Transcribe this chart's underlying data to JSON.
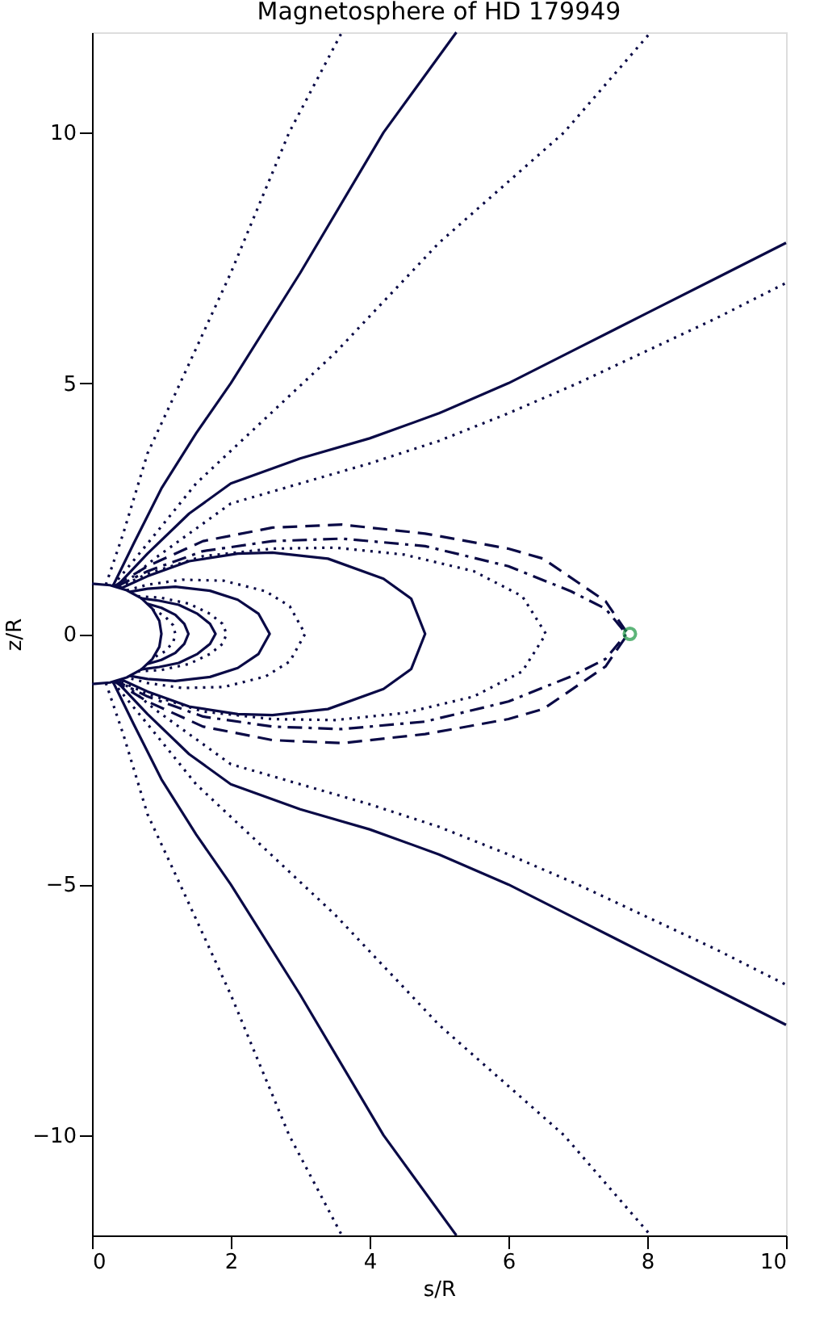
{
  "chart_data": {
    "type": "line",
    "title": "Magnetosphere of HD 179949",
    "xlabel": "s/R",
    "ylabel": "z/R",
    "xlim": [
      0,
      10
    ],
    "ylim": [
      -12,
      12
    ],
    "xticks": [
      0,
      2,
      4,
      6,
      8,
      10
    ],
    "yticks": [
      -10,
      -5,
      0,
      5,
      10
    ],
    "grid": false,
    "series": [
      {
        "color": "#0a0a46",
        "line_style": "solid",
        "x": [
          0,
          0.26,
          0.5,
          0.71,
          0.87,
          0.97,
          1,
          0.97,
          0.87,
          0.71,
          0.5,
          0.26,
          0
        ],
        "values": [
          1,
          0.97,
          0.87,
          0.71,
          0.5,
          0.26,
          0,
          -0.26,
          -0.5,
          -0.71,
          -0.87,
          -0.97,
          -1
        ]
      },
      {
        "color": "#0a0a46",
        "line_style": "dotted",
        "x": [
          0.87,
          1.05,
          1.17,
          1.2,
          1.17,
          1.05,
          0.87
        ],
        "values": [
          0.49,
          0.35,
          0.17,
          0,
          -0.17,
          -0.35,
          -0.49
        ]
      },
      {
        "color": "#0a0a46",
        "line_style": "solid",
        "x": [
          0.8,
          1.0,
          1.2,
          1.33,
          1.39,
          1.33,
          1.2,
          1.0,
          0.8
        ],
        "values": [
          0.6,
          0.52,
          0.38,
          0.2,
          0,
          -0.2,
          -0.38,
          -0.52,
          -0.6
        ]
      },
      {
        "color": "#0a0a46",
        "line_style": "solid",
        "x": [
          0.7,
          0.97,
          1.25,
          1.52,
          1.7,
          1.78,
          1.7,
          1.52,
          1.25,
          0.97,
          0.7
        ],
        "values": [
          0.71,
          0.66,
          0.58,
          0.4,
          0.2,
          0,
          -0.2,
          -0.4,
          -0.58,
          -0.66,
          -0.71
        ]
      },
      {
        "color": "#0a0a46",
        "line_style": "dotted",
        "x": [
          0.66,
          1.0,
          1.4,
          1.7,
          1.88,
          1.94,
          1.88,
          1.7,
          1.4,
          1.0,
          0.66
        ],
        "values": [
          0.75,
          0.72,
          0.6,
          0.4,
          0.2,
          0,
          -0.2,
          -0.4,
          -0.6,
          -0.72,
          -0.75
        ]
      },
      {
        "color": "#0a0a46",
        "line_style": "solid",
        "x": [
          0.55,
          0.8,
          1.2,
          1.7,
          2.1,
          2.4,
          2.56,
          2.4,
          2.1,
          1.7,
          1.2,
          0.8,
          0.55
        ],
        "values": [
          0.84,
          0.9,
          0.94,
          0.86,
          0.68,
          0.4,
          0,
          -0.4,
          -0.68,
          -0.86,
          -0.94,
          -0.9,
          -0.84
        ]
      },
      {
        "color": "#0a0a46",
        "line_style": "dotted",
        "x": [
          0.5,
          0.8,
          1.3,
          1.9,
          2.5,
          2.85,
          3.07,
          2.85,
          2.5,
          1.9,
          1.3,
          0.8,
          0.5
        ],
        "values": [
          0.87,
          0.98,
          1.08,
          1.06,
          0.85,
          0.55,
          0,
          -0.55,
          -0.85,
          -1.06,
          -1.08,
          -0.98,
          -0.87
        ]
      },
      {
        "color": "#0a0a46",
        "line_style": "solid",
        "x": [
          0.42,
          0.8,
          1.4,
          2.1,
          2.6,
          3.4,
          4.2,
          4.6,
          4.8,
          4.6,
          4.2,
          3.4,
          2.6,
          2.1,
          1.4,
          0.8,
          0.42
        ],
        "values": [
          0.91,
          1.15,
          1.45,
          1.6,
          1.62,
          1.5,
          1.1,
          0.7,
          0,
          -0.7,
          -1.1,
          -1.5,
          -1.62,
          -1.6,
          -1.45,
          -1.15,
          -0.91
        ]
      },
      {
        "color": "#0a0a46",
        "line_style": "dotted",
        "x": [
          0.38,
          0.8,
          1.6,
          2.6,
          3.5,
          4.5,
          5.5,
          6.2,
          6.54,
          6.2,
          5.5,
          4.5,
          3.5,
          2.6,
          1.6,
          0.8,
          0.38
        ],
        "values": [
          0.93,
          1.2,
          1.55,
          1.7,
          1.72,
          1.58,
          1.25,
          0.75,
          0,
          -0.75,
          -1.25,
          -1.58,
          -1.72,
          -1.7,
          -1.55,
          -1.2,
          -0.93
        ]
      },
      {
        "color": "#0a0a46",
        "line_style": "dashdot",
        "x": [
          0.35,
          0.8,
          1.6,
          2.6,
          3.6,
          4.8,
          6.0,
          6.9,
          7.4,
          7.7,
          7.4,
          6.9,
          6.0,
          4.8,
          3.6,
          2.6,
          1.6,
          0.8,
          0.35
        ],
        "values": [
          0.94,
          1.25,
          1.65,
          1.85,
          1.9,
          1.75,
          1.35,
          0.85,
          0.5,
          0,
          -0.5,
          -0.85,
          -1.35,
          -1.75,
          -1.9,
          -1.85,
          -1.65,
          -1.25,
          -0.94
        ]
      },
      {
        "color": "#0a0a46",
        "line_style": "dashed",
        "x": [
          0.32,
          0.8,
          1.6,
          2.6,
          3.6,
          4.8,
          6.0,
          6.5,
          7.4,
          7.72,
          7.4,
          6.5,
          6.0,
          4.8,
          3.6,
          2.6,
          1.6,
          0.8,
          0.32
        ],
        "values": [
          0.95,
          1.35,
          1.85,
          2.12,
          2.18,
          2.0,
          1.7,
          1.5,
          0.65,
          0,
          -0.65,
          -1.5,
          -1.7,
          -2.0,
          -2.18,
          -2.12,
          -1.85,
          -1.35,
          -0.95
        ]
      },
      {
        "color": "#0a0a46",
        "line_style": "dotted",
        "x": [
          0.2,
          0.45,
          0.8,
          1.27,
          2.0,
          2.84,
          3.6
        ],
        "values": [
          0.98,
          2.0,
          3.6,
          5,
          7.2,
          10,
          12
        ]
      },
      {
        "color": "#0a0a46",
        "line_style": "solid",
        "x": [
          0.3,
          0.6,
          1.0,
          1.5,
          2.0,
          3.0,
          4.2,
          5.25
        ],
        "values": [
          0.95,
          1.8,
          2.9,
          4.0,
          5.0,
          7.2,
          10,
          12
        ]
      },
      {
        "color": "#0a0a46",
        "line_style": "dotted",
        "x": [
          0.3,
          0.8,
          1.5,
          2.5,
          3.5,
          5.0,
          6.8,
          8.05
        ],
        "values": [
          0.96,
          1.8,
          3.0,
          4.3,
          5.6,
          7.8,
          10,
          12
        ]
      },
      {
        "color": "#0a0a46",
        "line_style": "solid",
        "x": [
          0.35,
          0.8,
          1.4,
          2,
          3,
          4,
          5,
          6,
          7,
          8,
          9,
          10
        ],
        "values": [
          0.94,
          1.6,
          2.4,
          3.0,
          3.5,
          3.9,
          4.4,
          5.0,
          5.7,
          6.4,
          7.1,
          7.8
        ]
      },
      {
        "color": "#0a0a46",
        "line_style": "dotted",
        "x": [
          0.4,
          0.9,
          1.5,
          2,
          3,
          4,
          5,
          6,
          7,
          8,
          9,
          10
        ],
        "values": [
          0.92,
          1.5,
          2.1,
          2.6,
          3.0,
          3.4,
          3.85,
          4.4,
          5.0,
          5.65,
          6.3,
          7.0
        ]
      },
      {
        "color": "#0a0a46",
        "line_style": "dotted",
        "x": [
          0.2,
          0.45,
          0.8,
          1.27,
          2.0,
          2.84,
          3.6
        ],
        "values": [
          -0.98,
          -2.0,
          -3.6,
          -5,
          -7.2,
          -10,
          -12
        ]
      },
      {
        "color": "#0a0a46",
        "line_style": "solid",
        "x": [
          0.3,
          0.6,
          1.0,
          1.5,
          2.0,
          3.0,
          4.2,
          5.25
        ],
        "values": [
          -0.95,
          -1.8,
          -2.9,
          -4.0,
          -5.0,
          -7.2,
          -10,
          -12
        ]
      },
      {
        "color": "#0a0a46",
        "line_style": "dotted",
        "x": [
          0.3,
          0.8,
          1.5,
          2.5,
          3.5,
          5.0,
          6.8,
          8.05
        ],
        "values": [
          -0.96,
          -1.8,
          -3.0,
          -4.3,
          -5.6,
          -7.8,
          -10,
          -12
        ]
      },
      {
        "color": "#0a0a46",
        "line_style": "solid",
        "x": [
          0.35,
          0.8,
          1.4,
          2,
          3,
          4,
          5,
          6,
          7,
          8,
          9,
          10
        ],
        "values": [
          -0.94,
          -1.6,
          -2.4,
          -3.0,
          -3.5,
          -3.9,
          -4.4,
          -5.0,
          -5.7,
          -6.4,
          -7.1,
          -7.8
        ]
      },
      {
        "color": "#0a0a46",
        "line_style": "dotted",
        "x": [
          0.4,
          0.9,
          1.5,
          2,
          3,
          4,
          5,
          6,
          7,
          8,
          9,
          10
        ],
        "values": [
          -0.92,
          -1.5,
          -2.1,
          -2.6,
          -3.0,
          -3.4,
          -3.85,
          -4.4,
          -5.0,
          -5.65,
          -6.3,
          -7.0
        ]
      },
      {
        "type": "scatter",
        "marker": "circle",
        "color": "#1a9641",
        "x": [
          7.75
        ],
        "values": [
          0
        ]
      }
    ]
  }
}
